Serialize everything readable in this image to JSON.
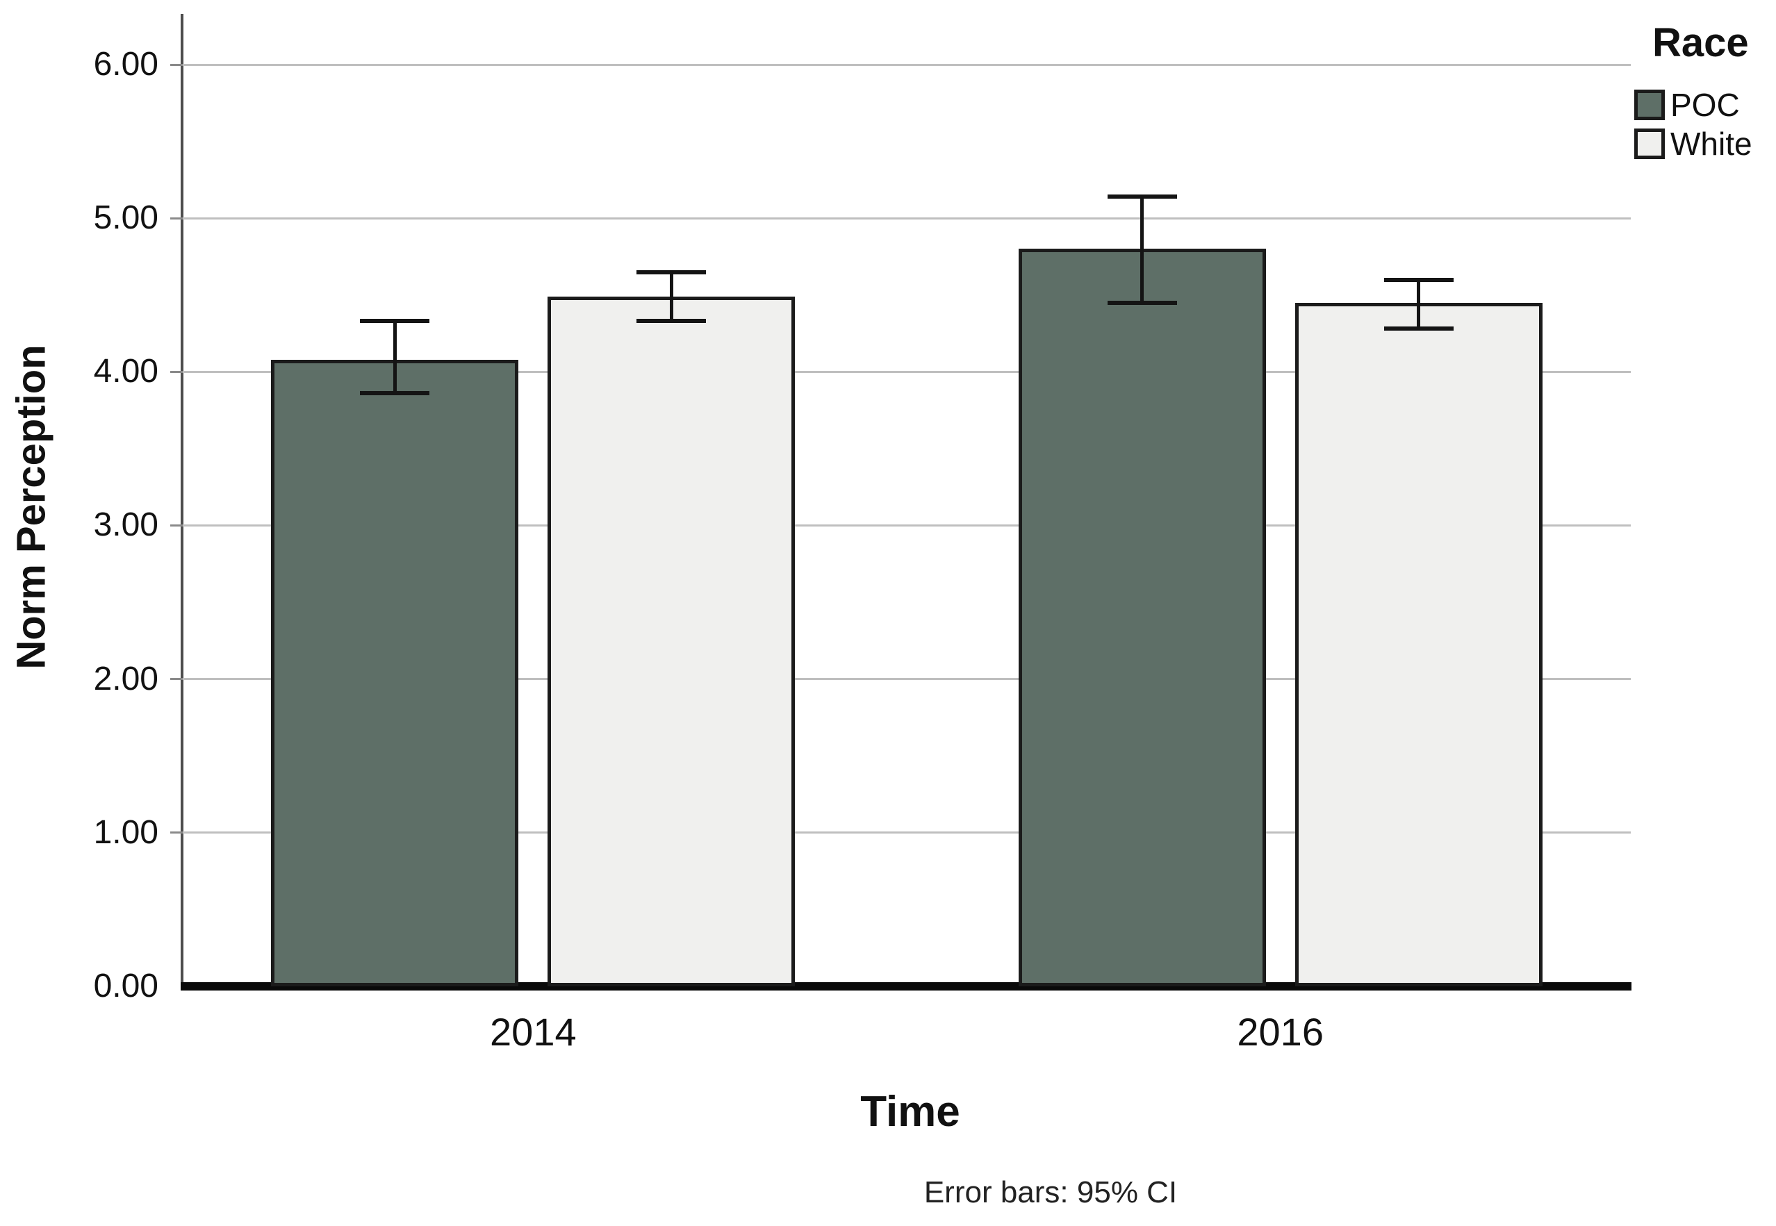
{
  "chart_data": {
    "type": "bar",
    "title": "",
    "xlabel": "Time",
    "ylabel": "Norm Perception",
    "categories": [
      "2014",
      "2016"
    ],
    "series": [
      {
        "name": "POC",
        "color": "#5E6F67",
        "values": [
          4.08,
          4.8
        ],
        "ci_low": [
          3.86,
          4.45
        ],
        "ci_high": [
          4.33,
          5.14
        ]
      },
      {
        "name": "White",
        "color": "#F0F0EE",
        "values": [
          4.49,
          4.45
        ],
        "ci_low": [
          4.33,
          4.28
        ],
        "ci_high": [
          4.65,
          4.6
        ]
      }
    ],
    "y_ticks": [
      0,
      1,
      2,
      3,
      4,
      5,
      6
    ],
    "y_tick_labels": [
      "0.00",
      "1.00",
      "2.00",
      "3.00",
      "4.00",
      "5.00",
      "6.00"
    ],
    "ylim": [
      0,
      6.33
    ],
    "grid": true,
    "legend": {
      "title": "Race",
      "position": "top-right",
      "entries": [
        "POC",
        "White"
      ]
    },
    "footnote": "Error bars: 95% CI"
  },
  "colors": {
    "grid": "#BFBFBF",
    "axis": "#4D4D4D",
    "baseline": "#0A0A0A",
    "bar_border": "#1B1B1B",
    "error_bar": "#141414"
  }
}
